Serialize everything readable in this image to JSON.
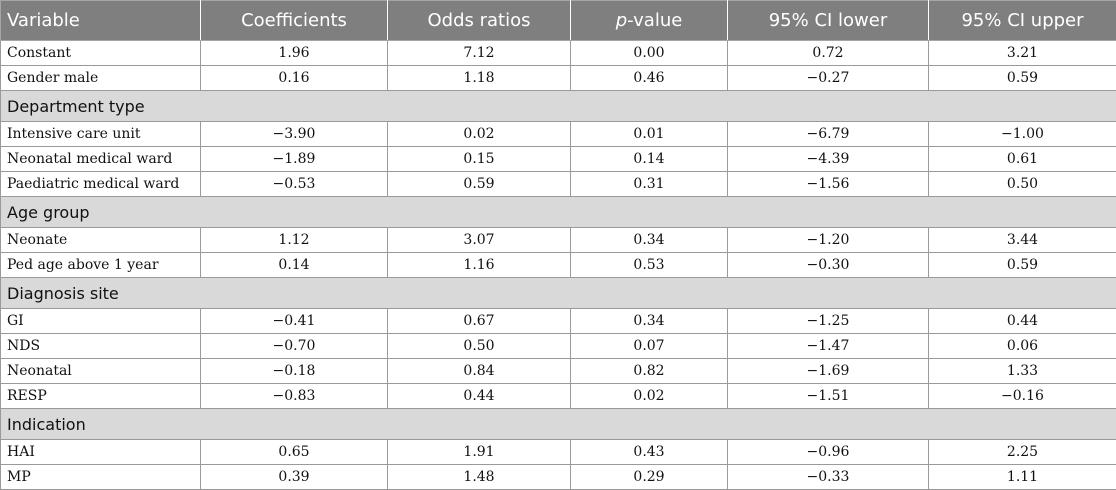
{
  "table": {
    "headers": {
      "variable": "Variable",
      "coefficients": "Coefficients",
      "odds_ratios": "Odds ratios",
      "p_italic": "p",
      "p_suffix": "-value",
      "ci_lower": "95% CI lower",
      "ci_upper": "95% CI upper"
    },
    "rows": [
      {
        "kind": "data",
        "label": "Constant",
        "values": [
          "1.96",
          "7.12",
          "0.00",
          "0.72",
          "3.21"
        ]
      },
      {
        "kind": "data",
        "label": "Gender male",
        "values": [
          "0.16",
          "1.18",
          "0.46",
          "−0.27",
          "0.59"
        ]
      },
      {
        "kind": "group",
        "label": "Department type"
      },
      {
        "kind": "data",
        "label": "Intensive care unit",
        "values": [
          "−3.90",
          "0.02",
          "0.01",
          "−6.79",
          "−1.00"
        ]
      },
      {
        "kind": "data",
        "label": "Neonatal medical ward",
        "values": [
          "−1.89",
          "0.15",
          "0.14",
          "−4.39",
          "0.61"
        ]
      },
      {
        "kind": "data",
        "label": "Paediatric medical ward",
        "values": [
          "−0.53",
          "0.59",
          "0.31",
          "−1.56",
          "0.50"
        ]
      },
      {
        "kind": "group",
        "label": "Age group"
      },
      {
        "kind": "data",
        "label": "Neonate",
        "values": [
          "1.12",
          "3.07",
          "0.34",
          "−1.20",
          "3.44"
        ]
      },
      {
        "kind": "data",
        "label": "Ped age above 1 year",
        "values": [
          "0.14",
          "1.16",
          "0.53",
          "−0.30",
          "0.59"
        ]
      },
      {
        "kind": "group",
        "label": "Diagnosis site"
      },
      {
        "kind": "data",
        "label": "GI",
        "values": [
          "−0.41",
          "0.67",
          "0.34",
          "−1.25",
          "0.44"
        ]
      },
      {
        "kind": "data",
        "label": "NDS",
        "values": [
          "−0.70",
          "0.50",
          "0.07",
          "−1.47",
          "0.06"
        ]
      },
      {
        "kind": "data",
        "label": "Neonatal",
        "values": [
          "−0.18",
          "0.84",
          "0.82",
          "−1.69",
          "1.33"
        ]
      },
      {
        "kind": "data",
        "label": "RESP",
        "values": [
          "−0.83",
          "0.44",
          "0.02",
          "−1.51",
          "−0.16"
        ]
      },
      {
        "kind": "group",
        "label": "Indication"
      },
      {
        "kind": "data",
        "label": "HAI",
        "values": [
          "0.65",
          "1.91",
          "0.43",
          "−0.96",
          "2.25"
        ]
      },
      {
        "kind": "data",
        "label": "MP",
        "values": [
          "0.39",
          "1.48",
          "0.29",
          "−0.33",
          "1.11"
        ]
      }
    ]
  }
}
